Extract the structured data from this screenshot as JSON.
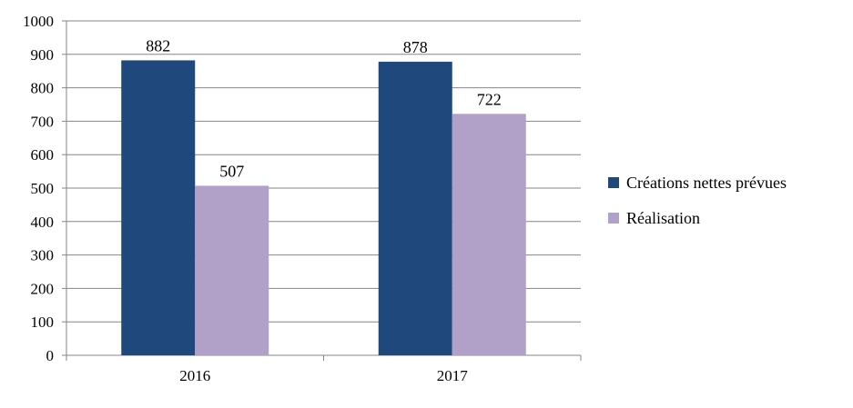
{
  "chart_data": {
    "type": "bar",
    "categories": [
      "2016",
      "2017"
    ],
    "series": [
      {
        "name": "Créations nettes prévues",
        "values": [
          882,
          878
        ],
        "color": "#1F497D"
      },
      {
        "name": "Réalisation",
        "values": [
          507,
          722
        ],
        "color": "#B1A0C7"
      }
    ],
    "ylim": [
      0,
      1000
    ],
    "yticks": [
      "0",
      "100",
      "200",
      "300",
      "400",
      "500",
      "600",
      "700",
      "800",
      "900",
      "1000"
    ],
    "grid": true,
    "legend_position": "right"
  }
}
